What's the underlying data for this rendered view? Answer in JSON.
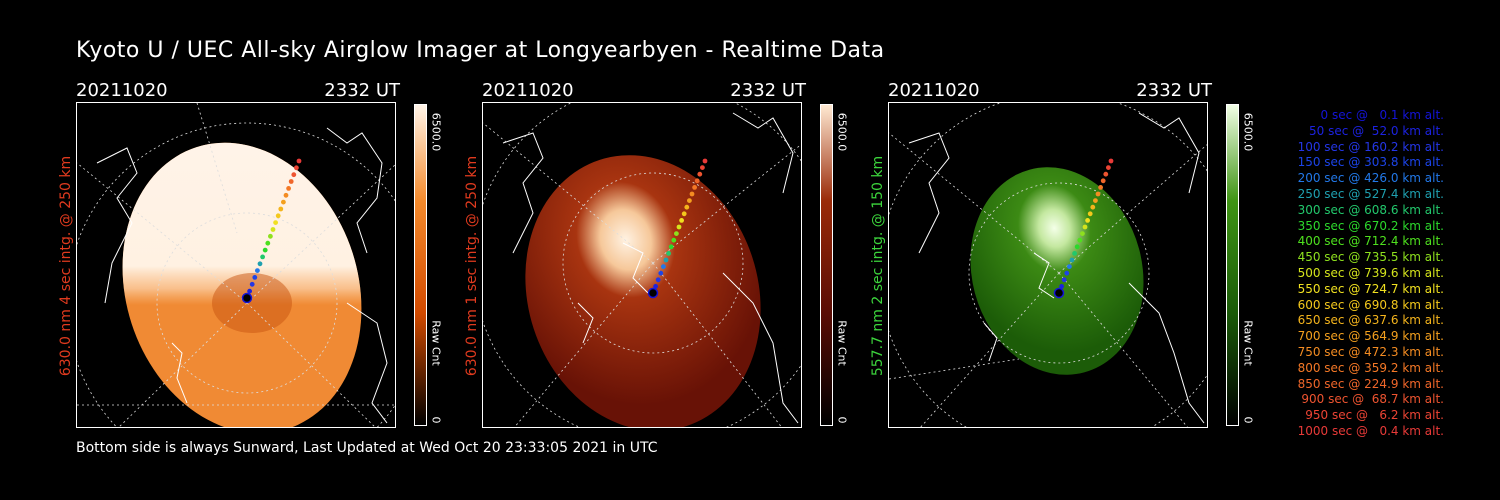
{
  "title": "Kyoto U / UEC All-sky Airglow Imager at Longyearbyen - Realtime Data",
  "footer": "Bottom side is always Sunward, Last Updated at Wed Oct 20 23:33:05 2021 in UTC",
  "panels": [
    {
      "date": "20211020",
      "time": "2332 UT",
      "side_label": "630.0 nm 4 sec intg. @ 250 km",
      "side_color": "#e03a1e",
      "colorbar_max": "6500.0",
      "colorbar_unit": "Raw Cnt",
      "colorbar_min": "0",
      "color_dark": "#d24a00",
      "color_mid": "#f48a2c",
      "color_bright": "#fff4e8"
    },
    {
      "date": "20211020",
      "time": "2332 UT",
      "side_label": "630.0 nm 1 sec intg. @ 250 km",
      "side_color": "#e03a1e",
      "colorbar_max": "6500.0",
      "colorbar_unit": "Raw Cnt",
      "colorbar_min": "0",
      "color_dark": "#5a0d05",
      "color_mid": "#9a2a08",
      "color_bright": "#ffe9d2"
    },
    {
      "date": "20211020",
      "time": "2332 UT",
      "side_label": "557.7 nm 2 sec intg. @ 150 km",
      "side_color": "#3cd43c",
      "colorbar_max": "6500.0",
      "colorbar_unit": "Raw Cnt",
      "colorbar_min": "0",
      "color_dark": "#1a5a08",
      "color_mid": "#3f9414",
      "color_bright": "#f2ffe6"
    }
  ],
  "legend": [
    {
      "text": "0 sec @   0.1 km alt.",
      "color": "#1414d8"
    },
    {
      "text": "50 sec @  52.0 km alt.",
      "color": "#1c22e0"
    },
    {
      "text": "100 sec @ 160.2 km alt.",
      "color": "#2436e6"
    },
    {
      "text": "150 sec @ 303.8 km alt.",
      "color": "#1c44e8"
    },
    {
      "text": "200 sec @ 426.0 km alt.",
      "color": "#2278e8"
    },
    {
      "text": "250 sec @ 527.4 km alt.",
      "color": "#1fa0b0"
    },
    {
      "text": "300 sec @ 608.6 km alt.",
      "color": "#22c86c"
    },
    {
      "text": "350 sec @ 670.2 km alt.",
      "color": "#2cd82c"
    },
    {
      "text": "400 sec @ 712.4 km alt.",
      "color": "#4ee01e"
    },
    {
      "text": "450 sec @ 735.5 km alt.",
      "color": "#8ee01e"
    },
    {
      "text": "500 sec @ 739.6 km alt.",
      "color": "#d4e41c"
    },
    {
      "text": "550 sec @ 724.7 km alt.",
      "color": "#f0e020"
    },
    {
      "text": "600 sec @ 690.8 km alt.",
      "color": "#f4c81c"
    },
    {
      "text": "650 sec @ 637.6 km alt.",
      "color": "#f4b41c"
    },
    {
      "text": "700 sec @ 564.9 km alt.",
      "color": "#f4a01e"
    },
    {
      "text": "750 sec @ 472.3 km alt.",
      "color": "#f48c22"
    },
    {
      "text": "800 sec @ 359.2 km alt.",
      "color": "#f47826"
    },
    {
      "text": "850 sec @ 224.9 km alt.",
      "color": "#f0662a"
    },
    {
      "text": "900 sec @  68.7 km alt.",
      "color": "#ee5430"
    },
    {
      "text": "950 sec @   6.2 km alt.",
      "color": "#ec4434"
    },
    {
      "text": "1000 sec @   0.4 km alt.",
      "color": "#e83a38"
    }
  ]
}
